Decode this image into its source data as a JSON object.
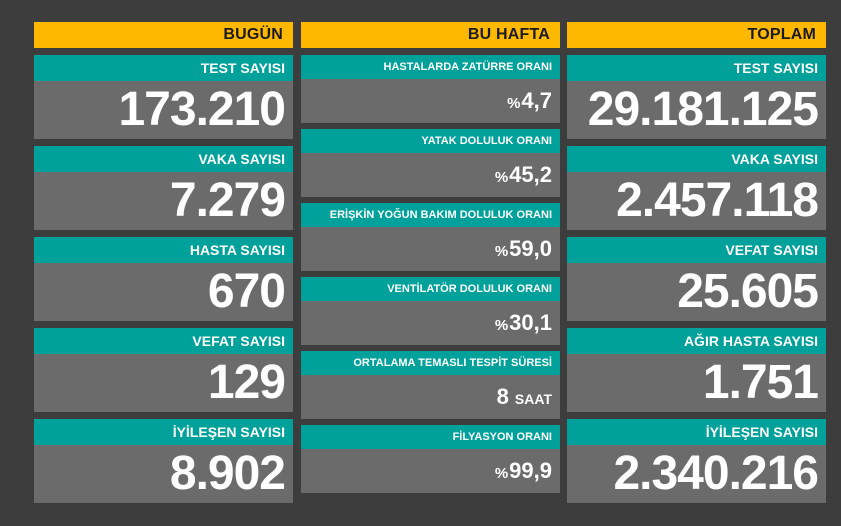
{
  "today": {
    "header": "BUGÜN",
    "cards": [
      {
        "label": "TEST SAYISI",
        "value": "173.210"
      },
      {
        "label": "VAKA SAYISI",
        "value": "7.279"
      },
      {
        "label": "HASTA SAYISI",
        "value": "670"
      },
      {
        "label": "VEFAT SAYISI",
        "value": "129"
      },
      {
        "label": "İYİLEŞEN SAYISI",
        "value": "8.902"
      }
    ]
  },
  "week": {
    "header": "BU HAFTA",
    "cards": [
      {
        "label": "HASTALARDA ZATÜRRE ORANI",
        "prefix": "%",
        "value": "4,7"
      },
      {
        "label": "YATAK DOLULUK ORANI",
        "prefix": "%",
        "value": "45,2"
      },
      {
        "label": "ERİŞKİN YOĞUN BAKIM DOLULUK ORANI",
        "prefix": "%",
        "value": "59,0"
      },
      {
        "label": "VENTİLATÖR DOLULUK ORANI",
        "prefix": "%",
        "value": "30,1"
      },
      {
        "label": "ORTALAMA TEMASLI TESPİT SÜRESİ",
        "value": "8",
        "unit": "SAAT"
      },
      {
        "label": "FİLYASYON ORANI",
        "prefix": "%",
        "value": "99,9"
      }
    ]
  },
  "total": {
    "header": "TOPLAM",
    "cards": [
      {
        "label": "TEST SAYISI",
        "value": "29.181.125"
      },
      {
        "label": "VAKA SAYISI",
        "value": "2.457.118"
      },
      {
        "label": "VEFAT SAYISI",
        "value": "25.605"
      },
      {
        "label": "AĞIR HASTA SAYISI",
        "value": "1.751"
      },
      {
        "label": "İYİLEŞEN SAYISI",
        "value": "2.340.216"
      }
    ]
  },
  "colors": {
    "background": "#3d3d3d",
    "header": "#ffb800",
    "label": "#00a19a",
    "value_bg": "#6b6b6b",
    "text": "#ffffff"
  }
}
